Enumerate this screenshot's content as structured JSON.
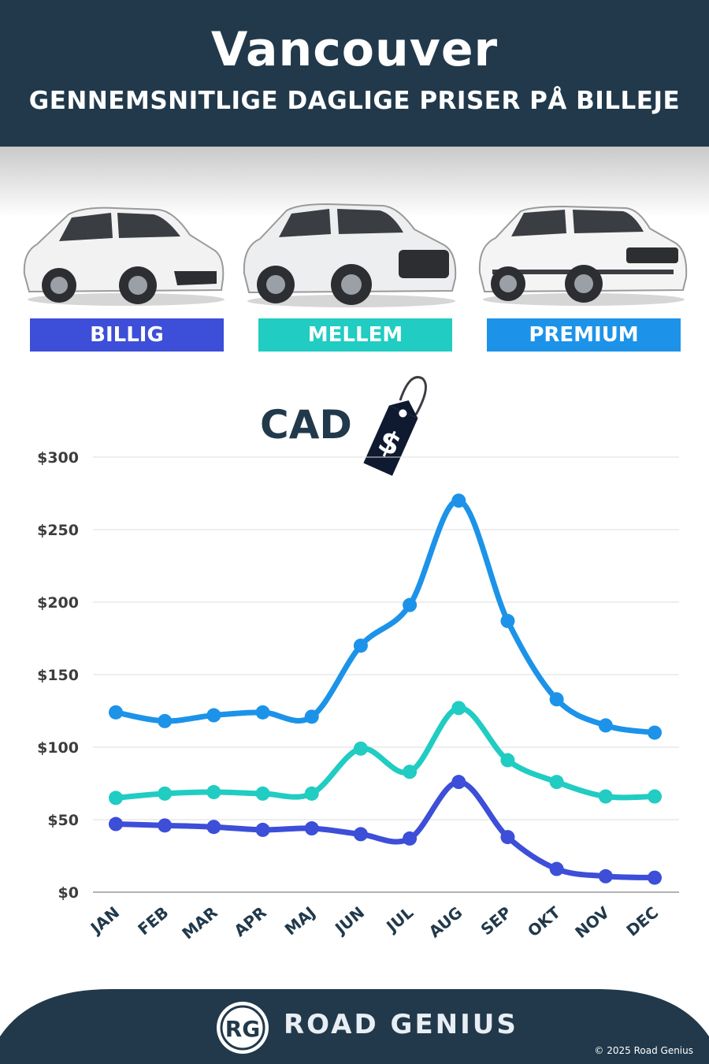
{
  "header": {
    "title": "Vancouver",
    "subtitle": "GENNEMSNITLIGE DAGLIGE PRISER PÅ BILLEJE"
  },
  "categories_legend": [
    {
      "label": "BILLIG",
      "color": "#3d4ed8"
    },
    {
      "label": "MELLEM",
      "color": "#21ccc2"
    },
    {
      "label": "PREMIUM",
      "color": "#1c93e8"
    }
  ],
  "currency_label": "CAD",
  "tag_symbol": "$",
  "chart_data": {
    "type": "line",
    "categories": [
      "JAN",
      "FEB",
      "MAR",
      "APR",
      "MAJ",
      "JUN",
      "JUL",
      "AUG",
      "SEP",
      "OKT",
      "NOV",
      "DEC"
    ],
    "series": [
      {
        "name": "PREMIUM",
        "color": "#1c93e8",
        "values": [
          124,
          118,
          122,
          124,
          121,
          170,
          198,
          270,
          187,
          133,
          115,
          110
        ]
      },
      {
        "name": "MELLEM",
        "color": "#21ccc2",
        "values": [
          65,
          68,
          69,
          68,
          68,
          99,
          83,
          127,
          91,
          76,
          66,
          66
        ]
      },
      {
        "name": "BILLIG",
        "color": "#3d4ed8",
        "values": [
          47,
          46,
          45,
          43,
          44,
          40,
          37,
          76,
          38,
          16,
          11,
          10
        ]
      }
    ],
    "yticks": [
      0,
      50,
      100,
      150,
      200,
      250,
      300
    ],
    "ytick_labels": [
      "$0",
      "$50",
      "$100",
      "$150",
      "$200",
      "$250",
      "$300"
    ],
    "ylim": [
      0,
      300
    ],
    "grid": true
  },
  "footer": {
    "logo_text": "RG",
    "brand": "ROAD GENIUS",
    "copyright": "© 2025 Road Genius"
  }
}
